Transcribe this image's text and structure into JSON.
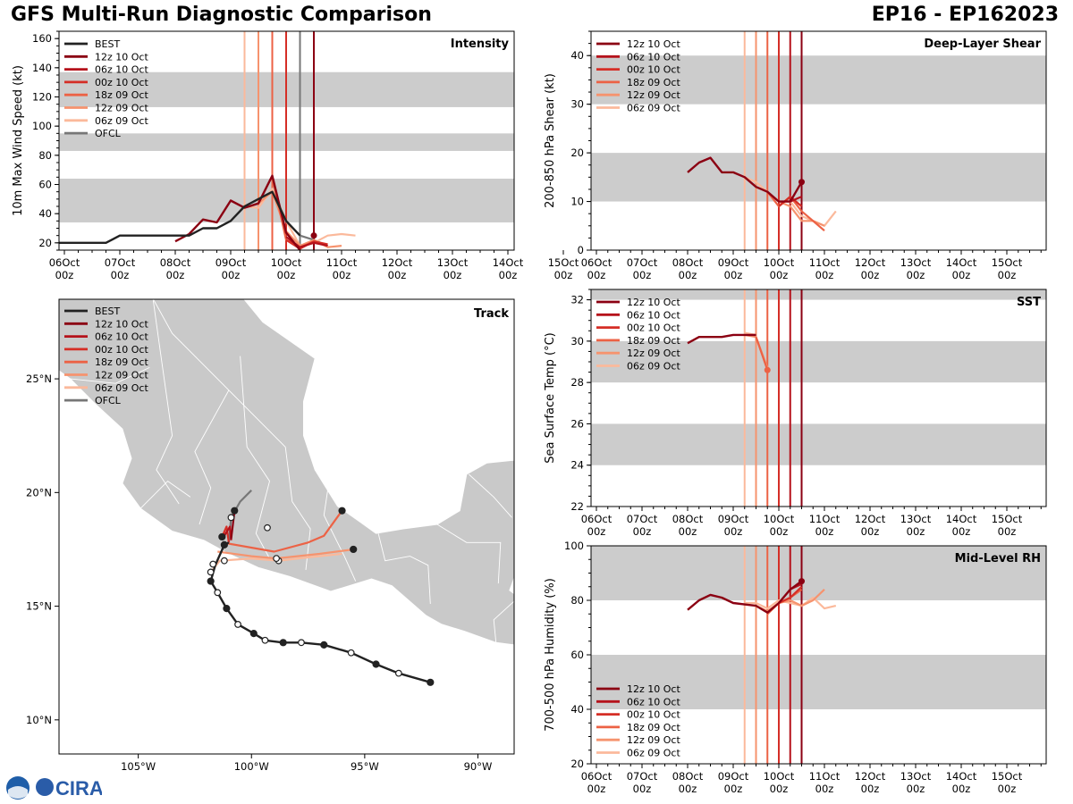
{
  "header": {
    "title": "GFS Multi-Run Diagnostic Comparison",
    "storm_id": "EP16 - EP162023"
  },
  "logo": {
    "text": "CIRA"
  },
  "colors": {
    "best": "#222222",
    "ofcl": "#777777",
    "land": "#c9c9c9",
    "shade": "#cccccc",
    "r12z10": "#8b0012",
    "r06z10": "#b5121b",
    "r00z10": "#d52e26",
    "r18z09": "#ec6245",
    "r12z09": "#f6936e",
    "r06z09": "#fbb99b"
  },
  "time_axis": {
    "day_labels": [
      "06Oct",
      "07Oct",
      "08Oct",
      "09Oct",
      "10Oct",
      "11Oct",
      "12Oct",
      "13Oct",
      "14Oct",
      "15Oct"
    ],
    "hour_label": "00z"
  },
  "chart_data": [
    {
      "id": "intensity",
      "type": "line",
      "title": "Intensity",
      "ylabel": "10m Max Wind Speed (kt)",
      "ylim": [
        15,
        165
      ],
      "yticks": [
        20,
        40,
        60,
        80,
        100,
        120,
        140,
        160
      ],
      "bands": [
        [
          34,
          64
        ],
        [
          83,
          95
        ],
        [
          113,
          137
        ]
      ],
      "legend": [
        "BEST",
        "12z 10 Oct",
        "06z 10 Oct",
        "00z 10 Oct",
        "18z 09 Oct",
        "12z 09 Oct",
        "06z 09 Oct",
        "OFCL"
      ],
      "vlines": [
        {
          "x": 3.25,
          "c": "r06z09"
        },
        {
          "x": 3.5,
          "c": "r12z09"
        },
        {
          "x": 3.75,
          "c": "r18z09"
        },
        {
          "x": 4.0,
          "c": "r00z10"
        },
        {
          "x": 4.25,
          "c": "ofcl"
        },
        {
          "x": 4.5,
          "c": "r12z10"
        }
      ],
      "series": [
        {
          "name": "BEST",
          "c": "best",
          "x": [
            -0.25,
            0.75,
            1.0,
            2.0,
            2.25,
            2.5,
            2.75,
            3.0,
            3.25,
            3.5,
            3.75,
            4.0,
            4.25
          ],
          "y": [
            20,
            20,
            25,
            25,
            25,
            30,
            30,
            35,
            45,
            50,
            55,
            35,
            25
          ]
        },
        {
          "name": "12z 10 Oct",
          "c": "r12z10",
          "x": [
            2.0,
            2.25,
            2.5,
            2.75,
            3.0,
            3.25,
            3.5,
            3.75,
            4.0,
            4.25
          ],
          "y": [
            21,
            26,
            36,
            34,
            49,
            44,
            47,
            66,
            27,
            15
          ],
          "m": [
            4.5
          ],
          "my": [
            25
          ]
        },
        {
          "name": "06z 10 Oct",
          "c": "r06z10",
          "x": [
            4.0,
            4.25,
            4.5,
            4.75
          ],
          "y": [
            24,
            17,
            20,
            18
          ]
        },
        {
          "name": "00z 10 Oct",
          "c": "r00z10",
          "x": [
            4.0,
            4.25,
            4.5,
            4.75
          ],
          "y": [
            22,
            16,
            21,
            19
          ]
        },
        {
          "name": "18z 09 Oct",
          "c": "r18z09",
          "x": [
            3.75,
            4.0,
            4.25,
            4.5,
            4.75
          ],
          "y": [
            65,
            22,
            17,
            21,
            18
          ]
        },
        {
          "name": "12z 09 Oct",
          "c": "r12z09",
          "x": [
            3.5,
            3.75,
            4.0,
            4.25,
            4.5,
            4.75,
            5.0
          ],
          "y": [
            47,
            55,
            28,
            18,
            22,
            17,
            18
          ]
        },
        {
          "name": "06z 09 Oct",
          "c": "r06z09",
          "x": [
            3.25,
            3.5,
            3.75,
            4.0,
            4.25,
            4.5,
            4.75,
            5.0,
            5.25
          ],
          "y": [
            45,
            44,
            57,
            35,
            18,
            20,
            25,
            26,
            25
          ]
        },
        {
          "name": "OFCL",
          "c": "ofcl",
          "x": [
            4.25,
            4.5,
            4.75
          ],
          "y": [
            25,
            22,
            18
          ]
        }
      ]
    },
    {
      "id": "shear",
      "type": "line",
      "title": "Deep-Layer Shear",
      "ylabel": "200-850 hPa Shear (kt)",
      "ylim": [
        0,
        45
      ],
      "yticks": [
        0,
        10,
        20,
        30,
        40
      ],
      "bands": [
        [
          10,
          20
        ],
        [
          30,
          40
        ]
      ],
      "legend": [
        "12z 10 Oct",
        "06z 10 Oct",
        "00z 10 Oct",
        "18z 09 Oct",
        "12z 09 Oct",
        "06z 09 Oct"
      ],
      "vlines": [
        {
          "x": 3.25,
          "c": "r06z09"
        },
        {
          "x": 3.5,
          "c": "r12z09"
        },
        {
          "x": 3.75,
          "c": "r18z09"
        },
        {
          "x": 4.0,
          "c": "r00z10"
        },
        {
          "x": 4.25,
          "c": "r06z10"
        },
        {
          "x": 4.5,
          "c": "r12z10"
        }
      ],
      "series": [
        {
          "name": "12z 10 Oct",
          "c": "r12z10",
          "x": [
            2.0,
            2.25,
            2.5,
            2.75,
            3.0,
            3.25,
            3.5,
            3.75,
            4.0,
            4.25,
            4.5
          ],
          "y": [
            16,
            18,
            19,
            16,
            16,
            15,
            13,
            12,
            10,
            10,
            14
          ],
          "m": [
            4.5
          ],
          "my": [
            14
          ]
        },
        {
          "name": "06z 10 Oct",
          "c": "r06z10",
          "x": [
            4.25,
            4.5
          ],
          "y": [
            10,
            11
          ]
        },
        {
          "name": "00z 10 Oct",
          "c": "r00z10",
          "x": [
            4.0,
            4.25,
            4.5
          ],
          "y": [
            9,
            11,
            9
          ]
        },
        {
          "name": "18z 09 Oct",
          "c": "r18z09",
          "x": [
            3.75,
            4.0,
            4.25,
            4.5,
            4.75,
            5.0
          ],
          "y": [
            12,
            9,
            11,
            8,
            6,
            4
          ]
        },
        {
          "name": "12z 09 Oct",
          "c": "r12z09",
          "x": [
            3.5,
            3.75,
            4.0,
            4.25,
            4.5,
            4.75,
            5.0
          ],
          "y": [
            13,
            12,
            10,
            9,
            6,
            6,
            5
          ]
        },
        {
          "name": "06z 09 Oct",
          "c": "r06z09",
          "x": [
            3.25,
            3.5,
            3.75,
            4.0,
            4.25,
            4.5,
            4.75,
            5.0,
            5.25
          ],
          "y": [
            15,
            14,
            12,
            10,
            10,
            7,
            6,
            5,
            8
          ]
        }
      ]
    },
    {
      "id": "sst",
      "type": "line",
      "title": "SST",
      "ylabel": "Sea Surface Temp (°C)",
      "ylim": [
        22,
        32.5
      ],
      "yticks": [
        22,
        24,
        26,
        28,
        30,
        32
      ],
      "bands": [
        [
          24,
          26
        ],
        [
          28,
          30
        ],
        [
          32,
          32.5
        ]
      ],
      "legend": [
        "12z 10 Oct",
        "06z 10 Oct",
        "00z 10 Oct",
        "18z 09 Oct",
        "12z 09 Oct",
        "06z 09 Oct"
      ],
      "vlines": [
        {
          "x": 3.25,
          "c": "r06z09"
        },
        {
          "x": 3.5,
          "c": "r12z09"
        },
        {
          "x": 3.75,
          "c": "r18z09"
        },
        {
          "x": 4.0,
          "c": "r00z10"
        },
        {
          "x": 4.25,
          "c": "r06z10"
        },
        {
          "x": 4.5,
          "c": "r12z10"
        }
      ],
      "series": [
        {
          "name": "12z 10 Oct",
          "c": "r12z10",
          "x": [
            2.0,
            2.25,
            2.5,
            2.75,
            3.0,
            3.25,
            3.5
          ],
          "y": [
            29.9,
            30.2,
            30.2,
            30.2,
            30.3,
            30.3,
            30.3
          ]
        },
        {
          "name": "18z 09 Oct",
          "c": "r18z09",
          "x": [
            3.5,
            3.75
          ],
          "y": [
            30.2,
            28.6
          ],
          "m": [
            3.75
          ],
          "my": [
            28.6
          ]
        },
        {
          "name": "12z 09 Oct",
          "c": "r12z09",
          "x": [
            3.25,
            3.5,
            3.75
          ],
          "y": [
            30.3,
            30.2,
            28.7
          ]
        },
        {
          "name": "06z 09 Oct",
          "c": "r06z09",
          "x": [
            3.25,
            3.5
          ],
          "y": [
            30.4,
            30.3
          ]
        }
      ]
    },
    {
      "id": "rh",
      "type": "line",
      "title": "Mid-Level RH",
      "ylabel": "700-500 hPa Humidity (%)",
      "ylim": [
        20,
        100
      ],
      "yticks": [
        20,
        40,
        60,
        80,
        100
      ],
      "bands": [
        [
          40,
          60
        ],
        [
          80,
          100
        ]
      ],
      "legend": [
        "12z 10 Oct",
        "06z 10 Oct",
        "00z 10 Oct",
        "18z 09 Oct",
        "12z 09 Oct",
        "06z 09 Oct"
      ],
      "vlines": [
        {
          "x": 3.25,
          "c": "r06z09"
        },
        {
          "x": 3.5,
          "c": "r12z09"
        },
        {
          "x": 3.75,
          "c": "r18z09"
        },
        {
          "x": 4.0,
          "c": "r00z10"
        },
        {
          "x": 4.25,
          "c": "r06z10"
        },
        {
          "x": 4.5,
          "c": "r12z10"
        }
      ],
      "series": [
        {
          "name": "12z 10 Oct",
          "c": "r12z10",
          "x": [
            2.0,
            2.25,
            2.5,
            2.75,
            3.0,
            3.25,
            3.5,
            3.75,
            4.0,
            4.25,
            4.5
          ],
          "y": [
            76.5,
            80,
            82,
            81,
            79,
            78.5,
            78,
            75.5,
            79,
            84,
            87
          ],
          "m": [
            4.5
          ],
          "my": [
            87
          ]
        },
        {
          "name": "06z 10 Oct",
          "c": "r06z10",
          "x": [
            4.25,
            4.5
          ],
          "y": [
            84,
            86
          ]
        },
        {
          "name": "00z 10 Oct",
          "c": "r00z10",
          "x": [
            4.0,
            4.25,
            4.5
          ],
          "y": [
            79,
            81,
            85
          ]
        },
        {
          "name": "18z 09 Oct",
          "c": "r18z09",
          "x": [
            3.75,
            4.0,
            4.25,
            4.5
          ],
          "y": [
            75,
            79,
            81,
            84
          ]
        },
        {
          "name": "12z 09 Oct",
          "c": "r12z09",
          "x": [
            3.5,
            3.75,
            4.0,
            4.25,
            4.5,
            4.75,
            5.0
          ],
          "y": [
            78,
            76,
            79,
            80,
            78,
            80,
            84
          ]
        },
        {
          "name": "06z 09 Oct",
          "c": "r06z09",
          "x": [
            3.25,
            3.5,
            3.75,
            4.0,
            4.25,
            4.5,
            4.75,
            5.0,
            5.25
          ],
          "y": [
            79,
            79,
            77,
            80,
            79,
            78,
            81,
            77,
            78
          ]
        }
      ]
    },
    {
      "id": "track",
      "type": "scatter",
      "title": "Track",
      "lon_range": [
        -108.5,
        -88.4
      ],
      "lat_range": [
        8.5,
        28.5
      ],
      "xticks": [
        -105,
        -100,
        -95,
        -90
      ],
      "xtick_labels": [
        "105°W",
        "100°W",
        "95°W",
        "90°W"
      ],
      "yticks": [
        10,
        15,
        20,
        25
      ],
      "ytick_labels": [
        "10°N",
        "15°N",
        "20°N",
        "25°N"
      ],
      "legend": [
        "BEST",
        "12z 10 Oct",
        "06z 10 Oct",
        "00z 10 Oct",
        "18z 09 Oct",
        "12z 09 Oct",
        "06z 09 Oct",
        "OFCL"
      ],
      "series": [
        {
          "name": "BEST",
          "c": "best",
          "lon": [
            -92.1,
            -93.5,
            -94.5,
            -95.6,
            -96.8,
            -97.8,
            -98.6,
            -99.4,
            -99.9,
            -100.6,
            -101.1,
            -101.5,
            -101.8,
            -101.6,
            -101.2,
            -101.0
          ],
          "lat": [
            11.65,
            12.05,
            12.45,
            12.95,
            13.3,
            13.4,
            13.4,
            13.5,
            13.8,
            14.2,
            14.9,
            15.6,
            16.1,
            16.8,
            17.7,
            17.8
          ],
          "filled": [
            0,
            2,
            4,
            6,
            8,
            10,
            12,
            14
          ],
          "open": [
            1,
            3,
            5,
            7,
            9,
            11
          ]
        },
        {
          "name": "12z 10 Oct",
          "c": "r12z10",
          "lon": [
            -100.9,
            -100.75
          ],
          "lat": [
            17.95,
            19.2
          ],
          "filled": [
            1
          ]
        },
        {
          "name": "06z 10 Oct",
          "c": "r06z10",
          "lon": [
            -100.9,
            -100.95,
            -101.2
          ],
          "lat": [
            17.9,
            18.5,
            18.1
          ]
        },
        {
          "name": "00z 10 Oct",
          "c": "r00z10",
          "lon": [
            -101.0,
            -101.1,
            -101.3
          ],
          "lat": [
            17.8,
            18.5,
            18.05
          ],
          "filled": [
            2
          ]
        },
        {
          "name": "18z 09 Oct",
          "c": "r18z09",
          "lon": [
            -101.3,
            -99.0,
            -97.5,
            -96.8,
            -96.0
          ],
          "lat": [
            17.8,
            17.4,
            17.8,
            18.1,
            19.2
          ],
          "filled": [
            4
          ]
        },
        {
          "name": "12z 09 Oct",
          "c": "r12z09",
          "lon": [
            -101.5,
            -100.0,
            -98.9,
            -97.0,
            -95.5
          ],
          "lat": [
            17.4,
            17.2,
            17.1,
            17.3,
            17.5
          ],
          "filled": [
            4
          ],
          "open": [
            2
          ]
        },
        {
          "name": "06z 09 Oct",
          "c": "r06z09",
          "lon": [
            -101.8,
            -101.4,
            -100.0,
            -98.8,
            -97.5,
            -96.0
          ],
          "lat": [
            16.5,
            17.0,
            17.1,
            17.0,
            17.15,
            17.3
          ],
          "open": [
            0,
            3
          ]
        },
        {
          "name": "OFCL",
          "c": "ofcl",
          "lon": [
            -101.0,
            -100.9,
            -100.5,
            -100.0
          ],
          "lat": [
            17.8,
            18.9,
            19.6,
            20.1
          ],
          "open": [
            1
          ]
        }
      ],
      "extra_open_markers": [
        {
          "lon": -99.3,
          "lat": 18.45
        },
        {
          "lon": -101.2,
          "lat": 17.0
        },
        {
          "lon": -101.7,
          "lat": 16.85
        }
      ]
    }
  ]
}
